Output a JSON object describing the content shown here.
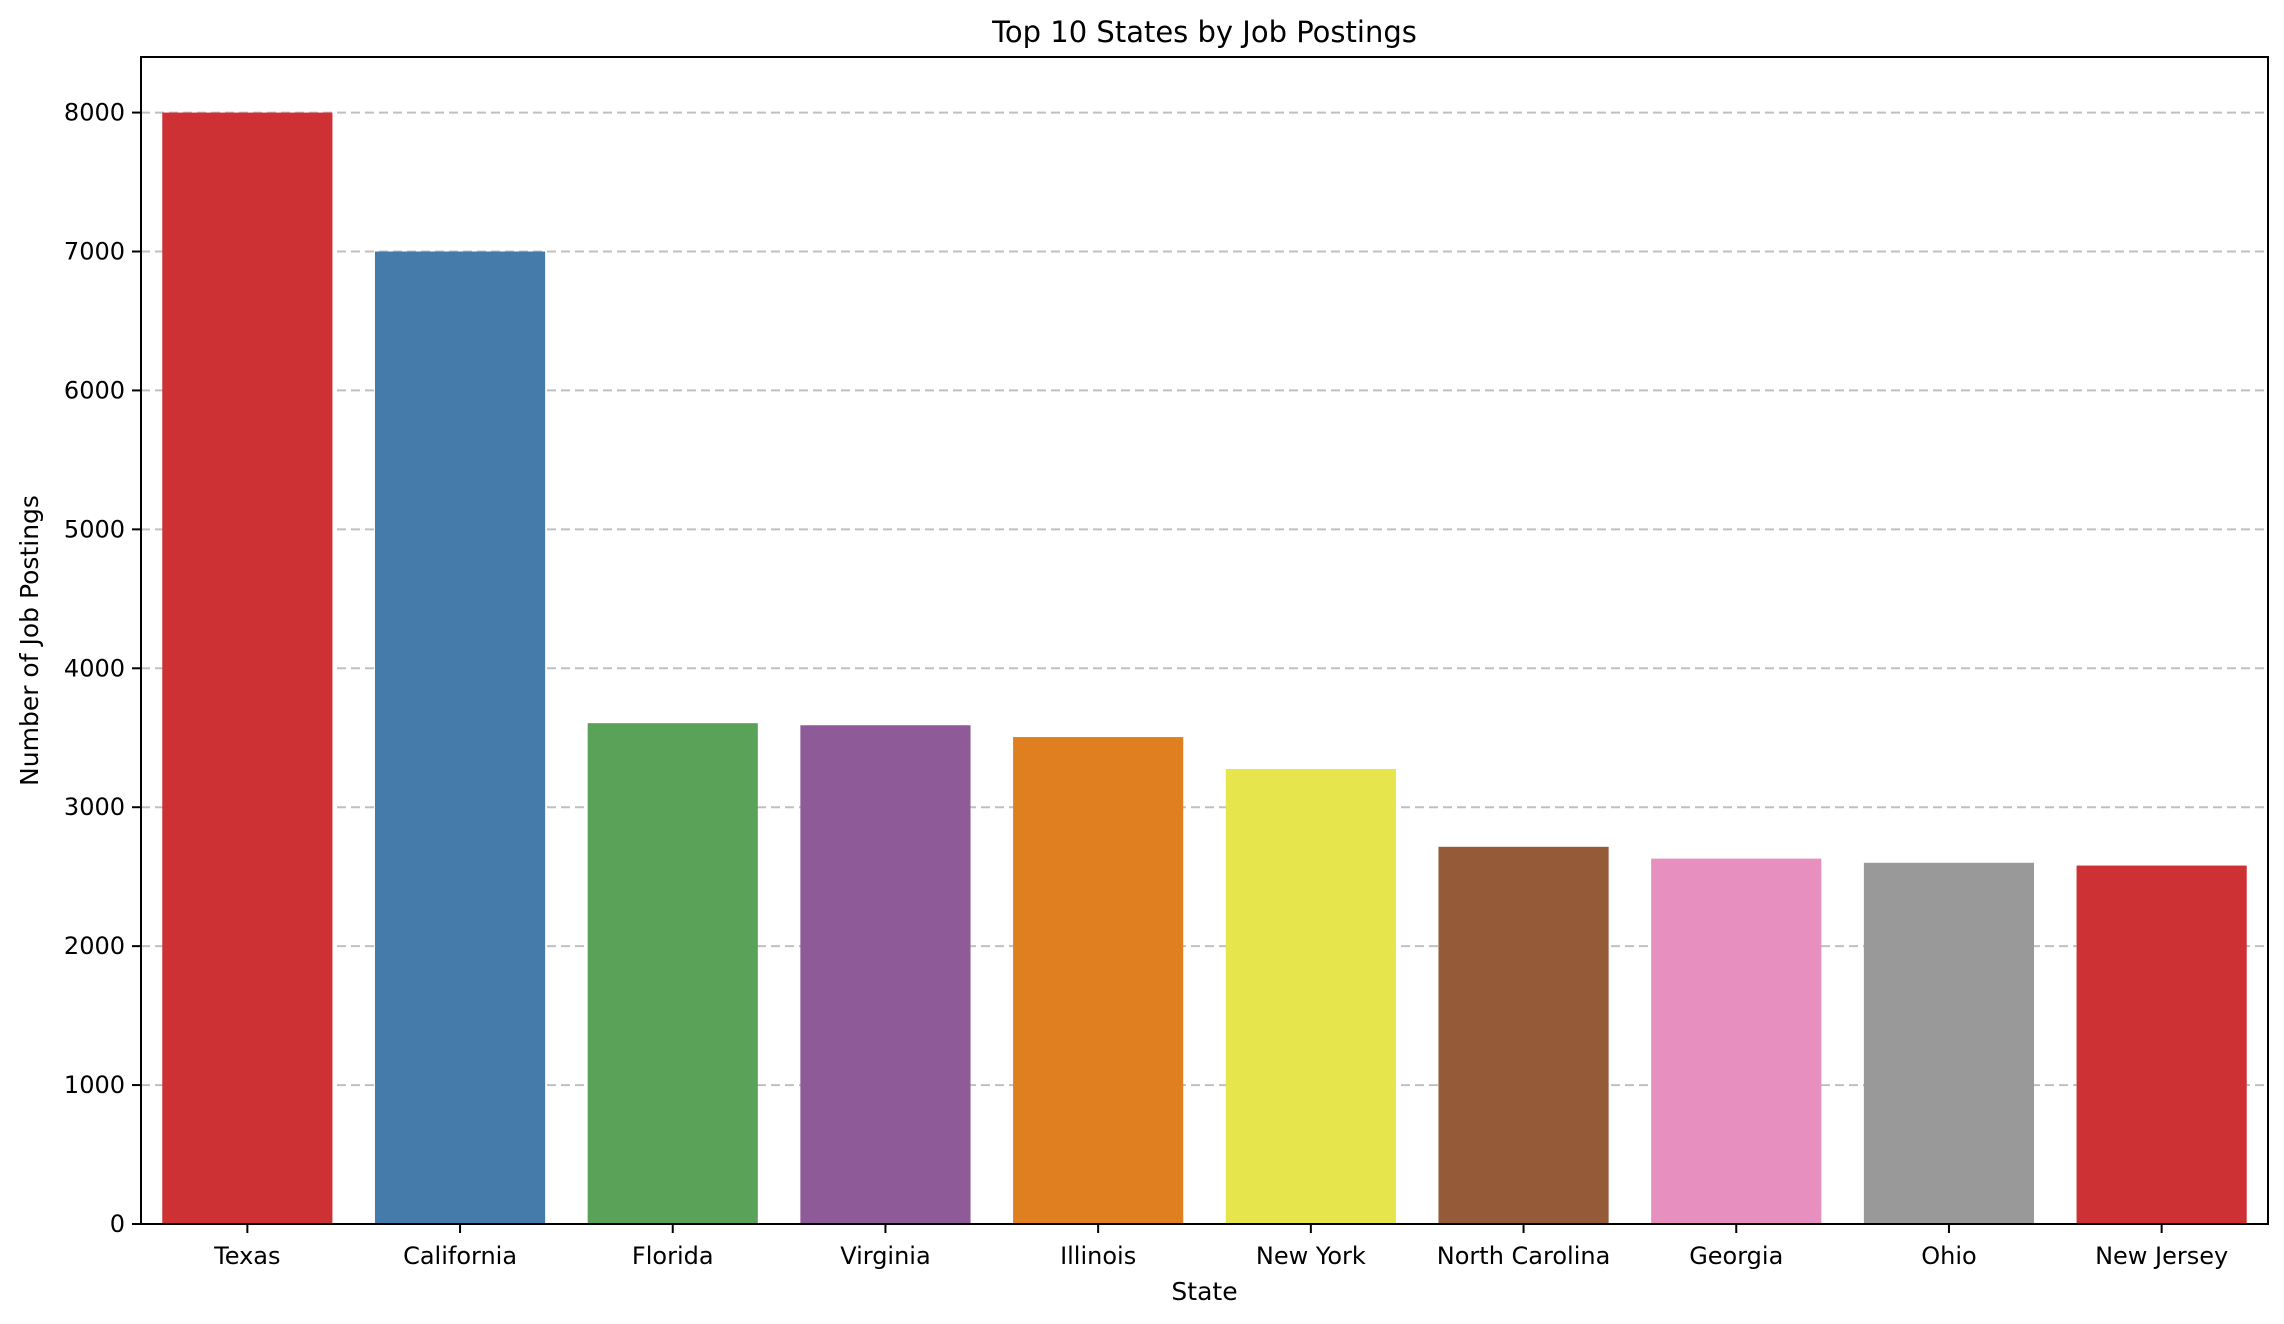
{
  "chart_data": {
    "type": "bar",
    "title": "Top 10 States by Job Postings",
    "xlabel": "State",
    "ylabel": "Number of Job Postings",
    "categories": [
      "Texas",
      "California",
      "Florida",
      "Virginia",
      "Illinois",
      "New York",
      "North Carolina",
      "Georgia",
      "Ohio",
      "New Jersey"
    ],
    "values": [
      8000,
      7000,
      3605,
      3590,
      3505,
      3275,
      2715,
      2630,
      2600,
      2580
    ],
    "colors": [
      "#cd3134",
      "#457bab",
      "#5aa257",
      "#8f5a98",
      "#e07f20",
      "#e7e54c",
      "#955a37",
      "#e78fbe",
      "#999999",
      "#cd3134"
    ],
    "ylim": [
      0,
      8400
    ],
    "yticks": [
      "0",
      "1000",
      "2000",
      "3000",
      "4000",
      "5000",
      "6000",
      "7000",
      "8000"
    ],
    "grid": "y-dashed",
    "legend": "none"
  }
}
